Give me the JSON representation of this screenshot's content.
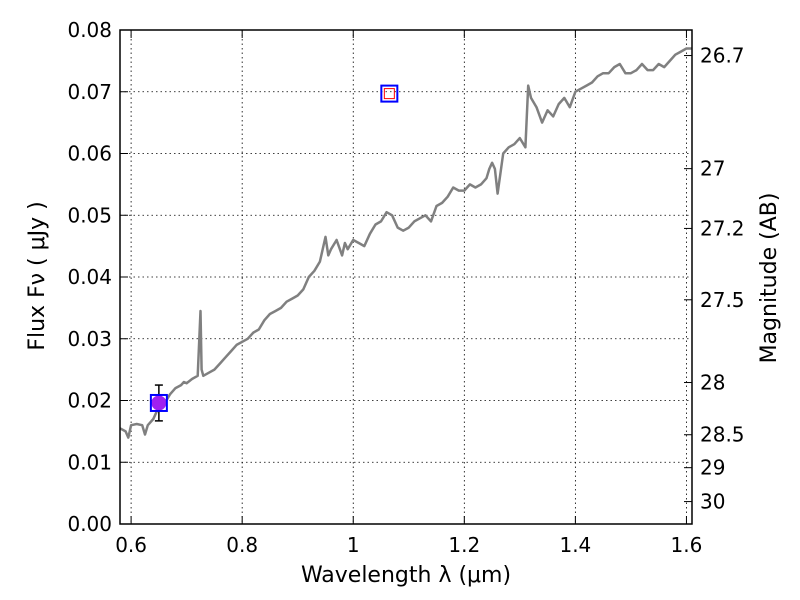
{
  "chart_data": {
    "type": "line",
    "xlabel": "Wavelength  λ (μm)",
    "ylabel": "Flux  Fν  ( μJy )",
    "y2label": "Magnitude (AB)",
    "xlim": [
      0.58,
      1.61
    ],
    "ylim": [
      0.0,
      0.08
    ],
    "grid": true,
    "x_ticks": [
      {
        "value": 0.6,
        "label": "0.6"
      },
      {
        "value": 0.8,
        "label": "0.8"
      },
      {
        "value": 1.0,
        "label": "1"
      },
      {
        "value": 1.2,
        "label": "1.2"
      },
      {
        "value": 1.4,
        "label": "1.4"
      },
      {
        "value": 1.6,
        "label": "1.6"
      }
    ],
    "y_ticks": [
      {
        "value": 0.0,
        "label": "0.00"
      },
      {
        "value": 0.01,
        "label": "0.01"
      },
      {
        "value": 0.02,
        "label": "0.02"
      },
      {
        "value": 0.03,
        "label": "0.03"
      },
      {
        "value": 0.04,
        "label": "0.04"
      },
      {
        "value": 0.05,
        "label": "0.05"
      },
      {
        "value": 0.06,
        "label": "0.06"
      },
      {
        "value": 0.07,
        "label": "0.07"
      },
      {
        "value": 0.08,
        "label": "0.08"
      }
    ],
    "y2_ticks": [
      {
        "value": 26.7,
        "label": "26.7"
      },
      {
        "value": 27.0,
        "label": "27"
      },
      {
        "value": 27.2,
        "label": "27.2"
      },
      {
        "value": 27.5,
        "label": "27.5"
      },
      {
        "value": 28.0,
        "label": "28"
      },
      {
        "value": 28.5,
        "label": "28.5"
      },
      {
        "value": 29.0,
        "label": "29"
      },
      {
        "value": 30.0,
        "label": "30"
      }
    ],
    "series": [
      {
        "color": "#808080",
        "x": [
          0.58,
          0.59,
          0.595,
          0.6,
          0.61,
          0.62,
          0.625,
          0.63,
          0.64,
          0.65,
          0.66,
          0.67,
          0.68,
          0.69,
          0.695,
          0.7,
          0.71,
          0.72,
          0.725,
          0.727,
          0.73,
          0.74,
          0.75,
          0.76,
          0.77,
          0.78,
          0.79,
          0.8,
          0.81,
          0.82,
          0.83,
          0.84,
          0.85,
          0.86,
          0.87,
          0.88,
          0.89,
          0.9,
          0.91,
          0.92,
          0.93,
          0.94,
          0.95,
          0.955,
          0.96,
          0.97,
          0.98,
          0.985,
          0.99,
          1.0,
          1.01,
          1.02,
          1.03,
          1.04,
          1.05,
          1.06,
          1.07,
          1.08,
          1.09,
          1.1,
          1.11,
          1.12,
          1.13,
          1.14,
          1.15,
          1.16,
          1.17,
          1.18,
          1.19,
          1.2,
          1.21,
          1.22,
          1.23,
          1.24,
          1.245,
          1.25,
          1.255,
          1.26,
          1.27,
          1.28,
          1.29,
          1.3,
          1.31,
          1.315,
          1.32,
          1.33,
          1.34,
          1.35,
          1.36,
          1.37,
          1.38,
          1.39,
          1.4,
          1.41,
          1.42,
          1.43,
          1.44,
          1.45,
          1.46,
          1.47,
          1.48,
          1.49,
          1.5,
          1.51,
          1.52,
          1.53,
          1.54,
          1.55,
          1.56,
          1.57,
          1.58,
          1.59,
          1.6,
          1.61
        ],
        "y": [
          0.0155,
          0.015,
          0.014,
          0.016,
          0.0162,
          0.016,
          0.0145,
          0.016,
          0.017,
          0.019,
          0.0195,
          0.021,
          0.022,
          0.0225,
          0.023,
          0.0228,
          0.0235,
          0.024,
          0.0345,
          0.025,
          0.024,
          0.0245,
          0.025,
          0.026,
          0.027,
          0.028,
          0.029,
          0.0295,
          0.03,
          0.031,
          0.0315,
          0.033,
          0.034,
          0.0345,
          0.035,
          0.036,
          0.0365,
          0.037,
          0.038,
          0.04,
          0.041,
          0.0425,
          0.0465,
          0.0435,
          0.0445,
          0.046,
          0.0435,
          0.0455,
          0.0445,
          0.046,
          0.0455,
          0.045,
          0.047,
          0.0485,
          0.049,
          0.0505,
          0.05,
          0.048,
          0.0475,
          0.048,
          0.049,
          0.0495,
          0.05,
          0.049,
          0.0515,
          0.052,
          0.053,
          0.0545,
          0.054,
          0.054,
          0.055,
          0.0545,
          0.055,
          0.056,
          0.0575,
          0.0585,
          0.0575,
          0.0535,
          0.06,
          0.061,
          0.0615,
          0.0625,
          0.061,
          0.071,
          0.069,
          0.0675,
          0.065,
          0.067,
          0.066,
          0.068,
          0.069,
          0.0675,
          0.07,
          0.0705,
          0.071,
          0.0715,
          0.0725,
          0.073,
          0.073,
          0.074,
          0.0745,
          0.073,
          0.073,
          0.0735,
          0.0745,
          0.0735,
          0.0735,
          0.0745,
          0.074,
          0.075,
          0.076,
          0.0765,
          0.077,
          0.077
        ]
      }
    ],
    "points": [
      {
        "x": 0.65,
        "y": 0.0196,
        "yerr": 0.0029,
        "marker": "circle",
        "face": "#a020f0",
        "edge": "#a020f0"
      },
      {
        "x": 0.65,
        "y": 0.0196,
        "marker": "square",
        "face": "none",
        "edge": "#0000ff"
      },
      {
        "x": 1.065,
        "y": 0.0697,
        "marker": "square",
        "face": "none",
        "edge": "#0000ff"
      },
      {
        "x": 1.065,
        "y": 0.0697,
        "marker": "square-small",
        "face": "none",
        "edge": "#ff0000"
      }
    ]
  }
}
